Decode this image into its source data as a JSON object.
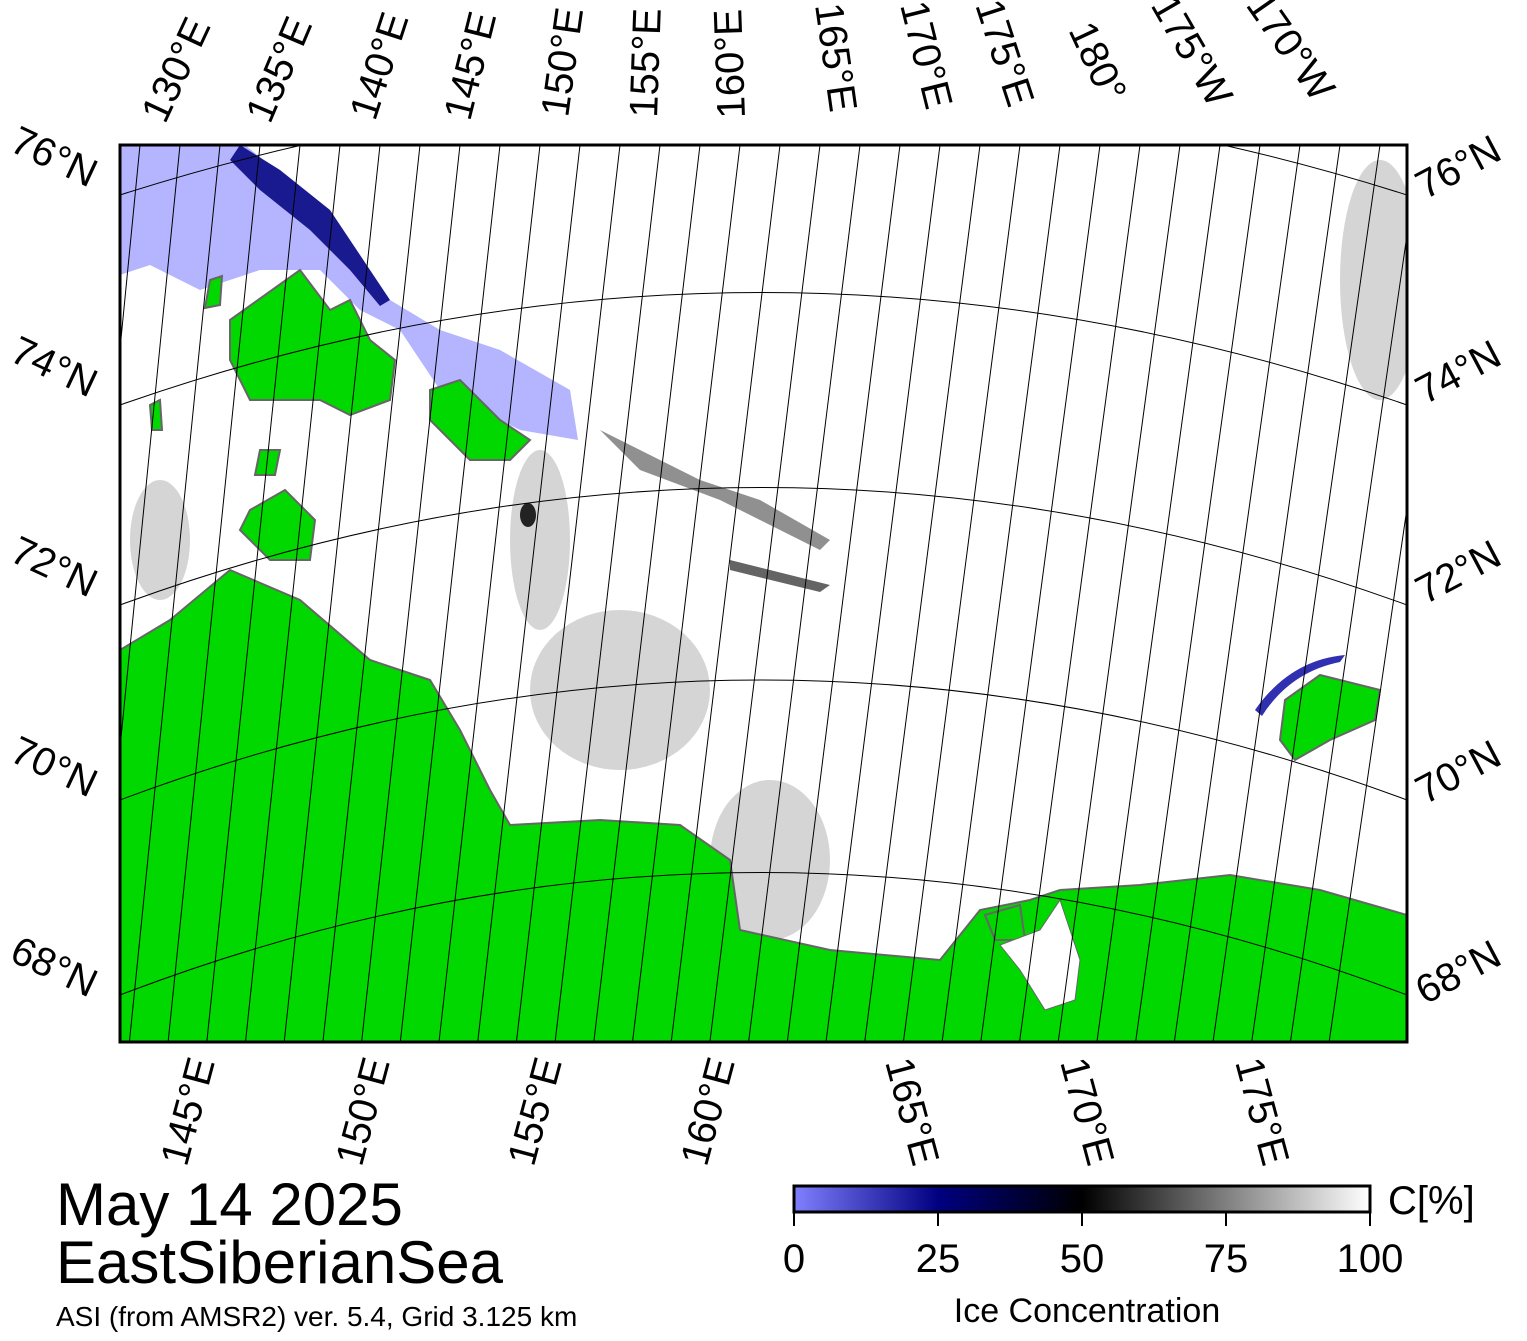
{
  "top_labels": [
    "130°E",
    "135°E",
    "140°E",
    "145°E",
    "150°E",
    "155°E",
    "160°E",
    "165°E",
    "170°E",
    "175°E",
    "180°",
    "175°W",
    "170°W"
  ],
  "left_labels": [
    "76°N",
    "74°N",
    "72°N",
    "70°N",
    "68°N"
  ],
  "right_labels": [
    "76°N",
    "74°N",
    "72°N",
    "70°N",
    "68°N"
  ],
  "bottom_labels": [
    "145°E",
    "150°E",
    "155°E",
    "160°E",
    "165°E",
    "170°E",
    "175°E"
  ],
  "date": "May 14 2025",
  "region": "EastSiberianSea",
  "source": "ASI (from AMSR2) ver. 5.4,  Grid 3.125 km",
  "colorbar": {
    "label": "Ice Concentration",
    "unit": "C[%]",
    "lim": [
      0,
      100
    ],
    "ticks": [
      0,
      25,
      50,
      75,
      100
    ],
    "colors": [
      "#8080ff",
      "#000080",
      "#000000",
      "#ffffff"
    ]
  }
}
